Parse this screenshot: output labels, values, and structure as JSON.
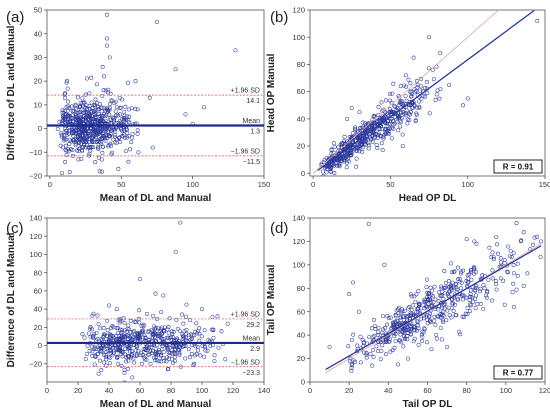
{
  "figure": {
    "colors": {
      "point": "#2e3a9c",
      "mean_line": "#1c2a8c",
      "sd_line": "#d24a4a",
      "fit_line": "#2a3a9a",
      "identity_line": "#e0a0a0",
      "axis": "#555555"
    }
  },
  "chart_data": [
    {
      "id": "a",
      "panel_label": "(a)",
      "type": "scatter",
      "subtype": "bland-altman",
      "xlabel": "Mean of DL and Manual",
      "ylabel": "Difference of DL and Manual",
      "xlim": [
        -2,
        150
      ],
      "ylim": [
        -20,
        50
      ],
      "xticks": [
        0,
        50,
        100,
        150
      ],
      "yticks": [
        -20,
        -10,
        0,
        10,
        20,
        30,
        40,
        50
      ],
      "grid": false,
      "lines": [
        {
          "kind": "sd",
          "y": 14.1,
          "label_top": "+1.96 SD",
          "label_bottom": "14.1"
        },
        {
          "kind": "mean",
          "y": 1.3,
          "label_top": "Mean",
          "label_bottom": "1.3"
        },
        {
          "kind": "sd",
          "y": -11.5,
          "label_top": "-1.96 SD",
          "label_bottom": "-11.5"
        }
      ],
      "points_gen": {
        "n": 620,
        "xmin": 4,
        "xmode": 22,
        "xmax": 62,
        "ymean": 1.3,
        "ysd": 5.8,
        "seed": 11
      },
      "outliers": [
        [
          40,
          48
        ],
        [
          40,
          38
        ],
        [
          40,
          35
        ],
        [
          75,
          45
        ],
        [
          130,
          33
        ],
        [
          42,
          30
        ],
        [
          37,
          26
        ],
        [
          38,
          22
        ],
        [
          60,
          20
        ],
        [
          88,
          25
        ],
        [
          70,
          13
        ],
        [
          95,
          6
        ],
        [
          100,
          2
        ],
        [
          108,
          9
        ],
        [
          12,
          20
        ],
        [
          55,
          -14
        ],
        [
          48,
          -17
        ],
        [
          35,
          -18
        ],
        [
          20,
          -13
        ],
        [
          62,
          -10
        ],
        [
          72,
          -8
        ]
      ]
    },
    {
      "id": "b",
      "panel_label": "(b)",
      "type": "scatter",
      "subtype": "regression",
      "xlabel": "Head OP DL",
      "ylabel": "Head OP Manual",
      "xlim": [
        -2,
        150
      ],
      "ylim": [
        -2,
        120
      ],
      "xticks": [
        0,
        50,
        100,
        150
      ],
      "yticks": [
        0,
        20,
        40,
        60,
        80,
        100,
        120
      ],
      "grid": false,
      "r_label": "R = 0.91",
      "fit": {
        "slope": 0.84,
        "intercept": -0.5,
        "x0": 3,
        "x1": 143
      },
      "identity": {
        "x0": 0,
        "x1": 120
      },
      "points_gen": {
        "n": 560,
        "xmin": 3,
        "xmode": 20,
        "xmax": 85,
        "slope": 0.84,
        "intercept": -0.5,
        "noise": 6,
        "seed": 23
      },
      "outliers": [
        [
          75,
          100
        ],
        [
          65,
          85
        ],
        [
          100,
          55
        ],
        [
          97,
          50
        ],
        [
          145,
          112
        ],
        [
          88,
          65
        ],
        [
          58,
          20
        ],
        [
          45,
          17
        ],
        [
          25,
          48
        ],
        [
          22,
          40
        ],
        [
          80,
          58
        ],
        [
          60,
          72
        ],
        [
          30,
          45
        ]
      ]
    },
    {
      "id": "c",
      "panel_label": "(c)",
      "type": "scatter",
      "subtype": "bland-altman",
      "xlabel": "Mean of DL and Manual",
      "ylabel": "Difference of DL and Manual",
      "xlim": [
        0,
        140
      ],
      "ylim": [
        -40,
        140
      ],
      "xticks": [
        0,
        20,
        40,
        60,
        80,
        100,
        120,
        140
      ],
      "yticks": [
        -20,
        0,
        20,
        40,
        60,
        80,
        100,
        120,
        140
      ],
      "grid": false,
      "lines": [
        {
          "kind": "sd",
          "y": 29.2,
          "label_top": "+1.96 SD",
          "label_bottom": "29.2"
        },
        {
          "kind": "mean",
          "y": 2.9,
          "label_top": "Mean",
          "label_bottom": "2.9"
        },
        {
          "kind": "sd",
          "y": -23.3,
          "label_top": "-1.96 SD",
          "label_bottom": "-23.3"
        }
      ],
      "points_gen": {
        "n": 520,
        "xmin": 20,
        "xmode": 48,
        "xmax": 120,
        "ymean": 2.9,
        "ysd": 12,
        "seed": 37
      },
      "outliers": [
        [
          86,
          135
        ],
        [
          83,
          103
        ],
        [
          60,
          73
        ],
        [
          70,
          57
        ],
        [
          75,
          55
        ],
        [
          90,
          45
        ],
        [
          100,
          40
        ],
        [
          110,
          32
        ],
        [
          40,
          44
        ],
        [
          45,
          40
        ],
        [
          30,
          35
        ],
        [
          55,
          -35
        ],
        [
          50,
          -30
        ],
        [
          35,
          -27
        ],
        [
          78,
          -26
        ],
        [
          95,
          -20
        ],
        [
          115,
          -15
        ]
      ]
    },
    {
      "id": "d",
      "panel_label": "(d)",
      "type": "scatter",
      "subtype": "regression",
      "xlabel": "Tail OP DL",
      "ylabel": "Tail OP Manual",
      "xlim": [
        0,
        120
      ],
      "ylim": [
        0,
        140
      ],
      "xticks": [
        0,
        20,
        40,
        60,
        80,
        100,
        120
      ],
      "yticks": [
        0,
        20,
        40,
        60,
        80,
        100,
        120,
        140
      ],
      "grid": false,
      "r_label": "R = 0.77",
      "fit": {
        "slope": 0.96,
        "intercept": 3,
        "x0": 8,
        "x1": 118
      },
      "identity": {
        "x0": 8,
        "x1": 118
      },
      "points_gen": {
        "n": 500,
        "xmin": 15,
        "xmode": 50,
        "xmax": 118,
        "slope": 0.96,
        "intercept": 3,
        "noise": 11,
        "seed": 53
      },
      "outliers": [
        [
          30,
          135
        ],
        [
          22,
          85
        ],
        [
          38,
          100
        ],
        [
          80,
          122
        ],
        [
          85,
          118
        ],
        [
          116,
          124
        ],
        [
          118,
          120
        ],
        [
          20,
          75
        ],
        [
          45,
          15
        ],
        [
          50,
          20
        ],
        [
          70,
          30
        ],
        [
          62,
          28
        ],
        [
          10,
          30
        ],
        [
          25,
          60
        ]
      ]
    }
  ]
}
